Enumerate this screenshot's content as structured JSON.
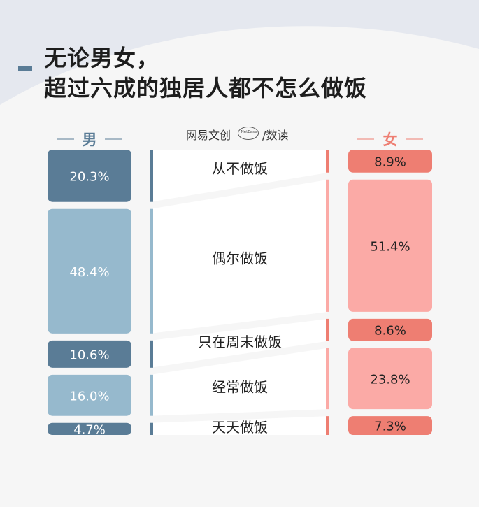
{
  "title": [
    "无论男女，",
    "超过六成的独居人都不怎么做饭"
  ],
  "brand": {
    "left": "网易文创",
    "circle": "NetEase",
    "right": "/数读"
  },
  "colors": {
    "male_dark": "#5a7c96",
    "male_light": "#96b9cd",
    "female_dark": "#ee7e72",
    "female_light": "#fbaaa6",
    "title": "#1d1d1d",
    "background": "#e5e8ef",
    "panel": "#f6f6f6"
  },
  "chart_data": {
    "type": "bar",
    "categories": [
      "从不做饭",
      "偶尔做饭",
      "只在周末做饭",
      "经常做饭",
      "天天做饭"
    ],
    "series": [
      {
        "name": "男",
        "values": [
          20.3,
          48.4,
          10.6,
          16.0,
          4.7
        ],
        "labels": [
          "20.3%",
          "48.4%",
          "10.6%",
          "16.0%",
          "4.7%"
        ]
      },
      {
        "name": "女",
        "values": [
          8.9,
          51.4,
          8.6,
          23.8,
          7.3
        ],
        "labels": [
          "8.9%",
          "51.4%",
          "8.6%",
          "23.8%",
          "7.3%"
        ]
      }
    ],
    "unit": "%",
    "ylim": [
      0,
      100
    ]
  }
}
